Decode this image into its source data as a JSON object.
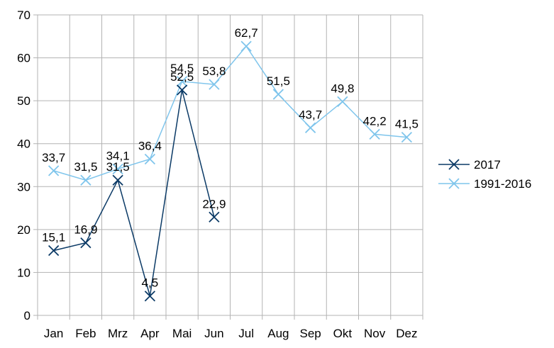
{
  "chart_data": {
    "type": "line",
    "title": "",
    "xlabel": "",
    "ylabel": "",
    "categories": [
      "Jan",
      "Feb",
      "Mrz",
      "Apr",
      "Mai",
      "Jun",
      "Jul",
      "Aug",
      "Sep",
      "Okt",
      "Nov",
      "Dez"
    ],
    "ylim": [
      0,
      70
    ],
    "yticks": [
      0,
      10,
      20,
      30,
      40,
      50,
      60,
      70
    ],
    "grid": true,
    "legend_position": "right",
    "series": [
      {
        "name": "2017",
        "color": "#0b3a66",
        "marker": "x",
        "values": [
          15.1,
          16.9,
          31.5,
          4.5,
          52.5,
          22.9,
          null,
          null,
          null,
          null,
          null,
          null
        ],
        "labels": [
          "15,1",
          "16,9",
          "31,5",
          "4,5",
          "52,5",
          "22,9",
          "",
          "",
          "",
          "",
          "",
          ""
        ]
      },
      {
        "name": "1991-2016",
        "color": "#7fc5ec",
        "marker": "x",
        "values": [
          33.7,
          31.5,
          34.1,
          36.4,
          54.5,
          53.8,
          62.7,
          51.5,
          43.7,
          49.8,
          42.2,
          41.5
        ],
        "labels": [
          "33,7",
          "31,5",
          "34,1",
          "36,4",
          "54,5",
          "53,8",
          "62,7",
          "51,5",
          "43,7",
          "49,8",
          "42,2",
          "41,5"
        ]
      }
    ]
  }
}
